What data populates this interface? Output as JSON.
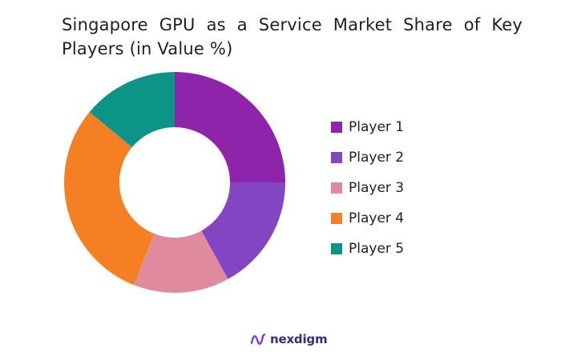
{
  "chart_data": {
    "type": "pie",
    "title": "Singapore GPU as a Service Market Share of Key Players (in Value %)",
    "donut": true,
    "legend_position": "right",
    "categories": [
      "Player 1",
      "Player 2",
      "Player 3",
      "Player 4",
      "Player 5"
    ],
    "values": [
      25,
      17,
      14,
      30,
      14
    ],
    "colors": [
      "#8e24aa",
      "#8345c2",
      "#e08a9e",
      "#f58024",
      "#0d9488"
    ]
  },
  "title_lines": [
    "Singapore GPU as a Service Market Share of Key",
    "Players (in Value %)"
  ],
  "brand": {
    "name": "nexdigm",
    "icon": "nexdigm-logo-icon",
    "color": "#3a2b78"
  }
}
